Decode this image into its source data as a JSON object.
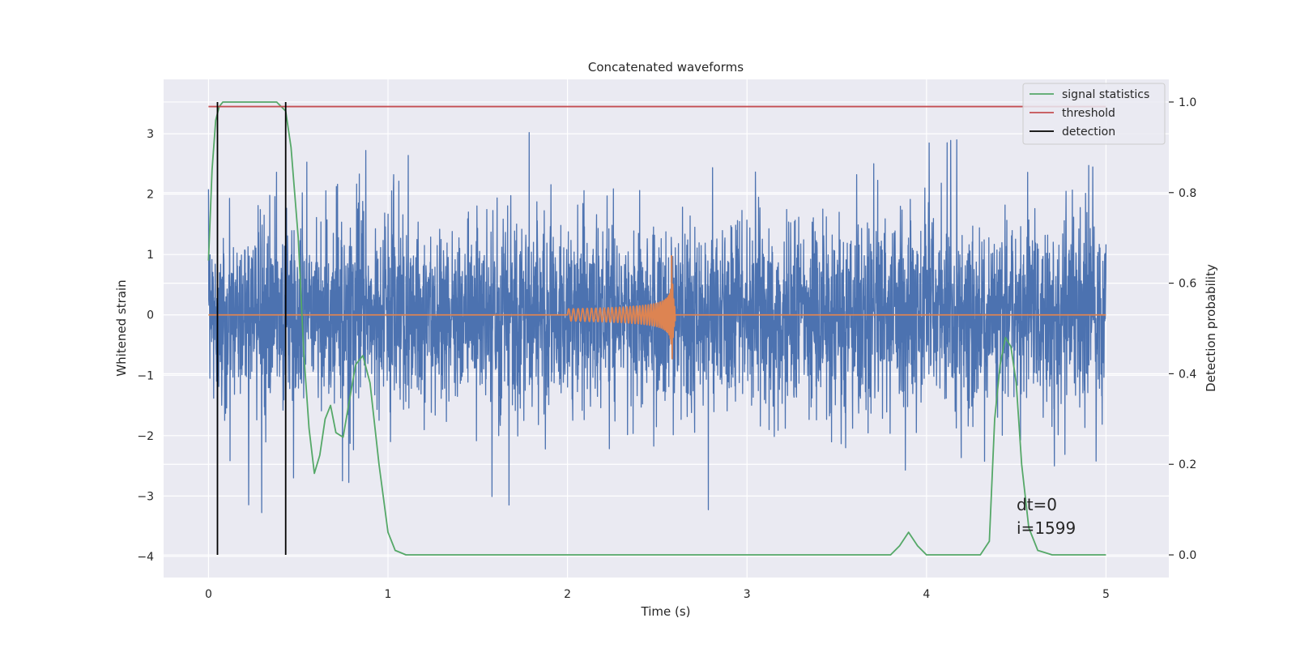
{
  "chart_data": {
    "type": "line",
    "title": "Concatenated waveforms",
    "xlabel": "Time (s)",
    "ylabel": "Whitened strain",
    "y2label": "Detection probability",
    "xlim": [
      -0.25,
      5.35
    ],
    "ylim": [
      -4.35,
      3.9
    ],
    "y2lim": [
      -0.05,
      1.05
    ],
    "xticks": [
      0,
      1,
      2,
      3,
      4,
      5
    ],
    "xtick_labels": [
      "0",
      "1",
      "2",
      "3",
      "4",
      "5"
    ],
    "yticks": [
      -4,
      -3,
      -2,
      -1,
      0,
      1,
      2,
      3
    ],
    "ytick_labels": [
      "−4",
      "−3",
      "−2",
      "−1",
      "0",
      "1",
      "2",
      "3"
    ],
    "y2ticks": [
      0,
      0.2,
      0.4,
      0.6,
      0.8,
      1.0
    ],
    "y2tick_labels": [
      "0.0",
      "0.2",
      "0.4",
      "0.6",
      "0.8",
      "1.0"
    ],
    "grid": true,
    "legend_position": "top-right",
    "colors": {
      "background": "#eaeaf2",
      "grid": "#ffffff",
      "strain": "#4c72b0",
      "template": "#dd8452",
      "signal_statistics": "#55a868",
      "threshold": "#c44e52",
      "detection": "#000000"
    },
    "series": [
      {
        "name": "",
        "axis": "left",
        "kind": "noisy strain",
        "x_range": [
          0,
          5
        ],
        "envelope_upper": [
          [
            0,
            2.5
          ],
          [
            0.1,
            2.0
          ],
          [
            0.2,
            1.6
          ],
          [
            0.3,
            2.6
          ],
          [
            0.4,
            2.9
          ],
          [
            0.6,
            2.4
          ],
          [
            0.8,
            2.0
          ],
          [
            0.9,
            3.2
          ],
          [
            1.0,
            2.6
          ],
          [
            1.5,
            2.9
          ],
          [
            1.75,
            3.1
          ],
          [
            2.0,
            2.8
          ],
          [
            2.5,
            2.2
          ],
          [
            3.0,
            3.0
          ],
          [
            3.5,
            2.5
          ],
          [
            4.05,
            3.5
          ],
          [
            4.5,
            2.7
          ],
          [
            5.0,
            2.6
          ]
        ],
        "envelope_lower": [
          [
            0,
            -2.4
          ],
          [
            0.3,
            -3.4
          ],
          [
            0.5,
            -3.0
          ],
          [
            1.0,
            -2.6
          ],
          [
            1.58,
            -3.4
          ],
          [
            2.0,
            -2.3
          ],
          [
            2.5,
            -2.6
          ],
          [
            2.8,
            -3.3
          ],
          [
            3.0,
            -2.4
          ],
          [
            3.5,
            -2.6
          ],
          [
            3.8,
            -4.0
          ],
          [
            4.38,
            -3.0
          ],
          [
            4.6,
            -2.6
          ],
          [
            5.0,
            -2.6
          ]
        ]
      },
      {
        "name": "",
        "axis": "left",
        "kind": "chirp waveform",
        "x": [
          2.0,
          2.6
        ],
        "start_amplitude": 0.1,
        "peak_time": 2.58,
        "peak_amplitude": 1.05
      },
      {
        "name": "signal statistics",
        "axis": "right",
        "x": [
          0,
          0.02,
          0.04,
          0.06,
          0.08,
          0.12,
          0.2,
          0.3,
          0.38,
          0.43,
          0.46,
          0.5,
          0.53,
          0.56,
          0.59,
          0.62,
          0.65,
          0.68,
          0.71,
          0.75,
          0.78,
          0.82,
          0.86,
          0.9,
          0.95,
          1.0,
          1.04,
          1.1,
          1.5,
          2.0,
          2.5,
          3.0,
          3.5,
          3.8,
          3.85,
          3.9,
          3.95,
          4.0,
          4.3,
          4.35,
          4.38,
          4.41,
          4.44,
          4.47,
          4.5,
          4.53,
          4.57,
          4.62,
          4.7,
          5.0
        ],
        "values": [
          0.65,
          0.85,
          0.96,
          0.99,
          1.0,
          1.0,
          1.0,
          1.0,
          1.0,
          0.98,
          0.9,
          0.7,
          0.45,
          0.28,
          0.18,
          0.22,
          0.3,
          0.33,
          0.27,
          0.26,
          0.33,
          0.42,
          0.44,
          0.38,
          0.2,
          0.05,
          0.01,
          0.0,
          0.0,
          0.0,
          0.0,
          0.0,
          0.0,
          0.0,
          0.02,
          0.05,
          0.02,
          0.0,
          0.0,
          0.03,
          0.3,
          0.42,
          0.48,
          0.46,
          0.38,
          0.2,
          0.06,
          0.01,
          0.0,
          0.0
        ]
      },
      {
        "name": "threshold",
        "axis": "right",
        "x": [
          0,
          5
        ],
        "values": [
          0.99,
          0.99
        ]
      },
      {
        "name": "detection",
        "axis": "right",
        "kind": "vertical lines",
        "x": [
          0.05,
          0.43
        ],
        "y_range": [
          0,
          1.0
        ]
      }
    ],
    "annotations": [
      "dt=0",
      "i=1599"
    ]
  }
}
